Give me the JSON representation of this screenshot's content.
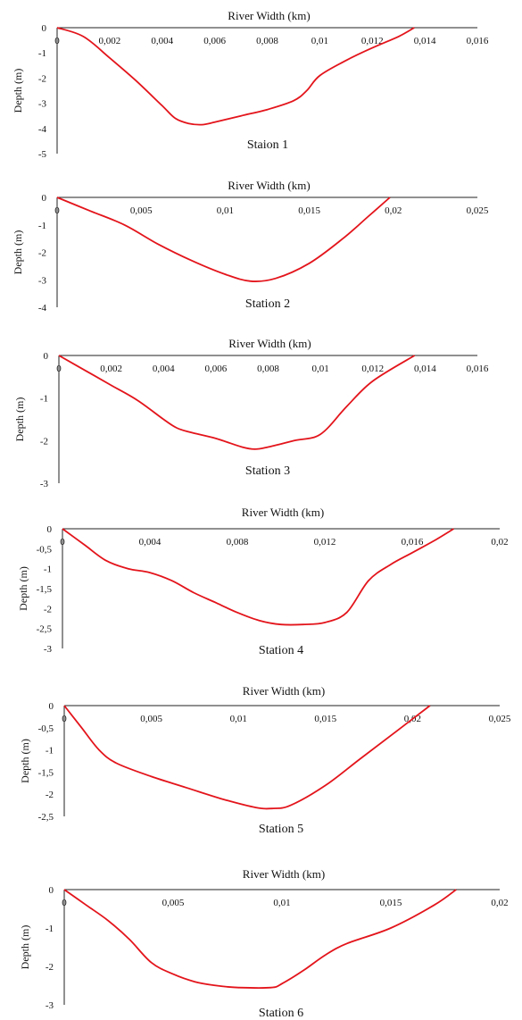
{
  "chart_data": [
    {
      "type": "line",
      "title": "Staion 1",
      "xlabel": "River Width (km)",
      "ylabel": "Depth (m)",
      "xlim": [
        0,
        0.016
      ],
      "ylim": [
        -5,
        0
      ],
      "x_ticks": [
        "0",
        "0,002",
        "0,004",
        "0,006",
        "0,008",
        "0,01",
        "0,012",
        "0,014",
        "0,016"
      ],
      "y_ticks": [
        "0",
        "-1",
        "-2",
        "-3",
        "-4",
        "-5"
      ],
      "grid": false,
      "line_color": "#e3141b",
      "series": [
        {
          "x": [
            0,
            0.001,
            0.002,
            0.003,
            0.004,
            0.0045,
            0.005,
            0.0055,
            0.006,
            0.007,
            0.008,
            0.009,
            0.0095,
            0.01,
            0.011,
            0.012,
            0.013,
            0.0136
          ],
          "values": [
            0,
            -0.35,
            -1.2,
            -2.1,
            -3.1,
            -3.6,
            -3.8,
            -3.85,
            -3.75,
            -3.5,
            -3.25,
            -2.9,
            -2.5,
            -1.9,
            -1.3,
            -0.8,
            -0.35,
            0
          ]
        }
      ]
    },
    {
      "type": "line",
      "title": "Station 2",
      "xlabel": "River Width (km)",
      "ylabel": "Depth (m)",
      "xlim": [
        0,
        0.025
      ],
      "ylim": [
        -4,
        0
      ],
      "x_ticks": [
        "0",
        "0,005",
        "0,01",
        "0,015",
        "0,02",
        "0,025"
      ],
      "y_ticks": [
        "0",
        "-1",
        "-2",
        "-3",
        "-4"
      ],
      "grid": false,
      "line_color": "#e3141b",
      "series": [
        {
          "x": [
            0,
            0.002,
            0.004,
            0.006,
            0.008,
            0.01,
            0.0115,
            0.013,
            0.015,
            0.017,
            0.0185,
            0.0198
          ],
          "values": [
            0,
            -0.5,
            -1.0,
            -1.7,
            -2.3,
            -2.8,
            -3.05,
            -2.95,
            -2.4,
            -1.5,
            -0.7,
            0
          ]
        }
      ]
    },
    {
      "type": "line",
      "title": "Station 3",
      "xlabel": "River Width (km)",
      "ylabel": "Depth (m)",
      "xlim": [
        0,
        0.016
      ],
      "ylim": [
        -3,
        0
      ],
      "x_ticks": [
        "0",
        "0,002",
        "0,004",
        "0,006",
        "0,008",
        "0,01",
        "0,012",
        "0,014",
        "0,016"
      ],
      "y_ticks": [
        "0",
        "-1",
        "-2",
        "-3"
      ],
      "grid": false,
      "line_color": "#e3141b",
      "series": [
        {
          "x": [
            0,
            0.001,
            0.002,
            0.003,
            0.004,
            0.0045,
            0.005,
            0.006,
            0.007,
            0.0075,
            0.008,
            0.009,
            0.01,
            0.011,
            0.012,
            0.0136
          ],
          "values": [
            0,
            -0.35,
            -0.7,
            -1.05,
            -1.5,
            -1.7,
            -1.8,
            -1.95,
            -2.15,
            -2.2,
            -2.15,
            -2.0,
            -1.85,
            -1.2,
            -0.6,
            0
          ]
        }
      ]
    },
    {
      "type": "line",
      "title": "Station 4",
      "xlabel": "River Width (km)",
      "ylabel": "Depth (m)",
      "xlim": [
        0,
        0.02
      ],
      "ylim": [
        -3,
        0
      ],
      "x_ticks": [
        "0",
        "0,004",
        "0,008",
        "0,012",
        "0,016",
        "0,02"
      ],
      "y_ticks": [
        "0",
        "-0,5",
        "-1",
        "-1,5",
        "-2",
        "-2,5",
        "-3"
      ],
      "grid": false,
      "line_color": "#e3141b",
      "series": [
        {
          "x": [
            0,
            0.001,
            0.002,
            0.003,
            0.004,
            0.005,
            0.006,
            0.007,
            0.008,
            0.009,
            0.01,
            0.011,
            0.012,
            0.013,
            0.014,
            0.015,
            0.016,
            0.017,
            0.0179
          ],
          "values": [
            0,
            -0.4,
            -0.8,
            -1.0,
            -1.1,
            -1.3,
            -1.6,
            -1.85,
            -2.1,
            -2.3,
            -2.4,
            -2.4,
            -2.35,
            -2.1,
            -1.3,
            -0.9,
            -0.6,
            -0.3,
            0
          ]
        }
      ]
    },
    {
      "type": "line",
      "title": "Station 5",
      "xlabel": "River Width (km)",
      "ylabel": "Depth (m)",
      "xlim": [
        0,
        0.025
      ],
      "ylim": [
        -2.5,
        0
      ],
      "x_ticks": [
        "0",
        "0,005",
        "0,01",
        "0,015",
        "0,02",
        "0,025"
      ],
      "y_ticks": [
        "0",
        "-0,5",
        "-1",
        "-1,5",
        "-2",
        "-2,5"
      ],
      "grid": false,
      "line_color": "#e3141b",
      "series": [
        {
          "x": [
            0,
            0.001,
            0.002,
            0.003,
            0.005,
            0.007,
            0.009,
            0.011,
            0.012,
            0.013,
            0.015,
            0.017,
            0.019,
            0.021
          ],
          "values": [
            0,
            -0.5,
            -1.0,
            -1.3,
            -1.6,
            -1.85,
            -2.1,
            -2.3,
            -2.32,
            -2.25,
            -1.8,
            -1.2,
            -0.6,
            0
          ]
        }
      ]
    },
    {
      "type": "line",
      "title": "Station 6",
      "xlabel": "River Width (km)",
      "ylabel": "Depth (m)",
      "xlim": [
        0,
        0.02
      ],
      "ylim": [
        -3,
        0
      ],
      "x_ticks": [
        "0",
        "0,005",
        "0,01",
        "0,015",
        "0,02"
      ],
      "y_ticks": [
        "0",
        "-1",
        "-2",
        "-3"
      ],
      "grid": false,
      "line_color": "#e3141b",
      "series": [
        {
          "x": [
            0,
            0.001,
            0.002,
            0.003,
            0.004,
            0.005,
            0.006,
            0.007,
            0.008,
            0.0095,
            0.01,
            0.011,
            0.012,
            0.013,
            0.015,
            0.017,
            0.018
          ],
          "values": [
            0,
            -0.4,
            -0.8,
            -1.3,
            -1.9,
            -2.2,
            -2.4,
            -2.5,
            -2.55,
            -2.55,
            -2.45,
            -2.1,
            -1.7,
            -1.4,
            -1.0,
            -0.4,
            0
          ]
        }
      ]
    }
  ]
}
